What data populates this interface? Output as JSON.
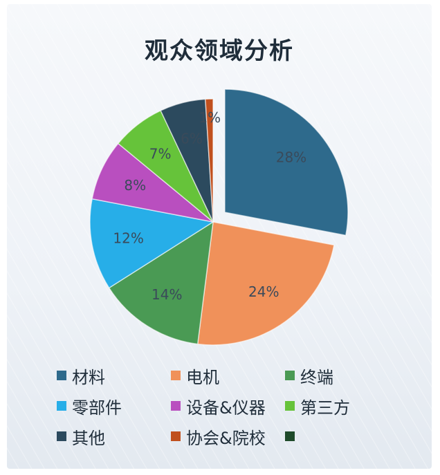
{
  "chart_data": {
    "type": "pie",
    "title": "观众领域分析",
    "slices": [
      {
        "label": "材料",
        "value": 28,
        "value_label": "28%",
        "color": "#2e6a8c",
        "exploded": true
      },
      {
        "label": "电机",
        "value": 24,
        "value_label": "24%",
        "color": "#f0915a"
      },
      {
        "label": "终端",
        "value": 14,
        "value_label": "14%",
        "color": "#4a9a54"
      },
      {
        "label": "零部件",
        "value": 12,
        "value_label": "12%",
        "color": "#27aee8"
      },
      {
        "label": "设备&仪器",
        "value": 8,
        "value_label": "8%",
        "color": "#b94fbf"
      },
      {
        "label": "第三方",
        "value": 7,
        "value_label": "7%",
        "color": "#66c33a"
      },
      {
        "label": "其他",
        "value": 6,
        "value_label": "6%",
        "color": "#2c4a5e"
      },
      {
        "label": "协会&院校",
        "value": 1,
        "value_label": "1%",
        "color": "#c0501e"
      }
    ],
    "legend_entries": [
      {
        "label": "材料",
        "color": "#2e6a8c"
      },
      {
        "label": "电机",
        "color": "#f0915a"
      },
      {
        "label": "终端",
        "color": "#4a9a54"
      },
      {
        "label": "零部件",
        "color": "#27aee8"
      },
      {
        "label": "设备&仪器",
        "color": "#b94fbf"
      },
      {
        "label": "第三方",
        "color": "#66c33a"
      },
      {
        "label": "其他",
        "color": "#2c4a5e"
      },
      {
        "label": "协会&院校",
        "color": "#c0501e"
      },
      {
        "label": "",
        "color": "#1e4a2a"
      }
    ],
    "legend_position": "bottom"
  }
}
